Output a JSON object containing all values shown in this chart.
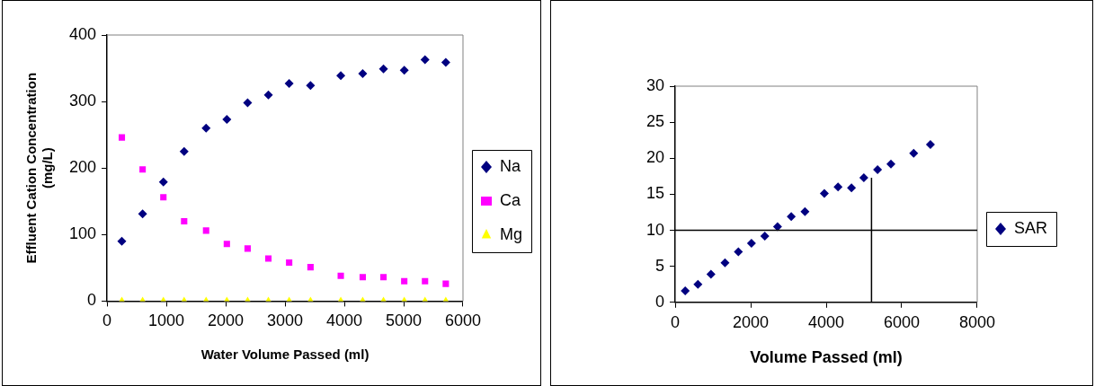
{
  "chart_data": [
    {
      "type": "scatter",
      "xlabel": "Water Volume Passed (ml)",
      "ylabel": "Effluent Cation Concentration\n(mg/L)",
      "xlim": [
        0,
        6000
      ],
      "xticks": [
        0,
        1000,
        2000,
        3000,
        4000,
        5000,
        6000
      ],
      "ylim": [
        0,
        400
      ],
      "yticks": [
        0,
        100,
        200,
        300,
        400
      ],
      "grid": false,
      "legend": "right",
      "x": [
        250,
        600,
        950,
        1300,
        1670,
        2020,
        2370,
        2720,
        3070,
        3430,
        3940,
        4310,
        4660,
        5010,
        5360,
        5710
      ],
      "series": [
        {
          "name": "Na",
          "color": "#000080",
          "marker": "diamond",
          "values": [
            90,
            131,
            179,
            225,
            260,
            273,
            298,
            310,
            327,
            324,
            339,
            342,
            349,
            347,
            363,
            359
          ]
        },
        {
          "name": "Ca",
          "color": "#ff00ff",
          "marker": "square",
          "values": [
            246,
            198,
            156,
            120,
            106,
            86,
            79,
            64,
            58,
            51,
            38,
            36,
            36,
            30,
            30,
            26
          ]
        },
        {
          "name": "Mg",
          "color": "#ffff00",
          "marker": "triangle",
          "values": [
            0,
            0,
            0,
            0,
            0,
            0,
            0,
            0,
            0,
            0,
            0,
            0,
            0,
            0,
            0,
            0
          ]
        }
      ]
    },
    {
      "type": "scatter",
      "xlabel": "Volume Passed (ml)",
      "xlim": [
        0,
        8000
      ],
      "xticks": [
        0,
        2000,
        4000,
        6000,
        8000
      ],
      "ylim": [
        0,
        30
      ],
      "yticks": [
        0,
        5,
        10,
        15,
        20,
        25,
        30
      ],
      "grid": false,
      "legend": "right",
      "ref_lines": [
        {
          "axis": "y",
          "value": 10,
          "color": "#000000"
        }
      ],
      "series": [
        {
          "name": "SAR",
          "color": "#000080",
          "marker": "diamond",
          "x": [
            266,
            602,
            948,
            1320,
            1674,
            2020,
            2374,
            2711,
            3074,
            3437,
            3951,
            4314,
            4669,
            4997,
            5360,
            5714,
            6317,
            6760
          ],
          "values": [
            1.6,
            2.5,
            3.9,
            5.5,
            7.0,
            8.2,
            9.2,
            10.5,
            11.9,
            12.6,
            15.1,
            16.0,
            15.9,
            17.3,
            18.4,
            19.2,
            20.7,
            21.9
          ]
        },
        {
          "type": "line",
          "color": "#000000",
          "marker": "none",
          "x": [
            5200,
            5200
          ],
          "values": [
            0,
            17.3
          ]
        }
      ]
    }
  ]
}
